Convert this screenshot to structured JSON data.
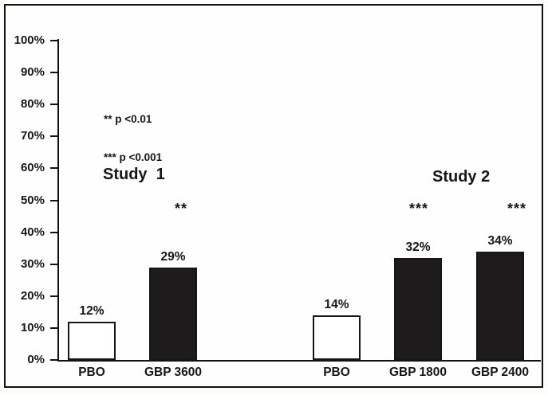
{
  "chart_data": {
    "type": "bar",
    "title": "",
    "xlabel": "",
    "ylabel": "",
    "ylim": [
      0,
      100
    ],
    "grid": false,
    "ytick_labels": [
      "0%",
      "10%",
      "20%",
      "30%",
      "40%",
      "50%",
      "60%",
      "70%",
      "80%",
      "90%",
      "100%"
    ],
    "annotations": [
      "** p <0.01",
      "*** p <0.001"
    ],
    "groups": [
      {
        "name": "Study  1",
        "bars": [
          {
            "category": "PBO",
            "value": 12,
            "value_label": "12%",
            "fill": "#ffffff",
            "significance": ""
          },
          {
            "category": "GBP 3600",
            "value": 29,
            "value_label": "29%",
            "fill": "#1d1b1b",
            "significance": "**"
          }
        ]
      },
      {
        "name": "Study 2",
        "bars": [
          {
            "category": "PBO",
            "value": 14,
            "value_label": "14%",
            "fill": "#ffffff",
            "significance": ""
          },
          {
            "category": "GBP 1800",
            "value": 32,
            "value_label": "32%",
            "fill": "#1d1b1b",
            "significance": "***"
          },
          {
            "category": "GBP 2400",
            "value": 34,
            "value_label": "34%",
            "fill": "#1d1b1b",
            "significance": "***"
          }
        ]
      }
    ],
    "colors": {
      "ink": "#161616",
      "bar_dark_fill": "#1d1b1b",
      "bar_light_fill": "#ffffff",
      "background": "#fefefe"
    }
  }
}
